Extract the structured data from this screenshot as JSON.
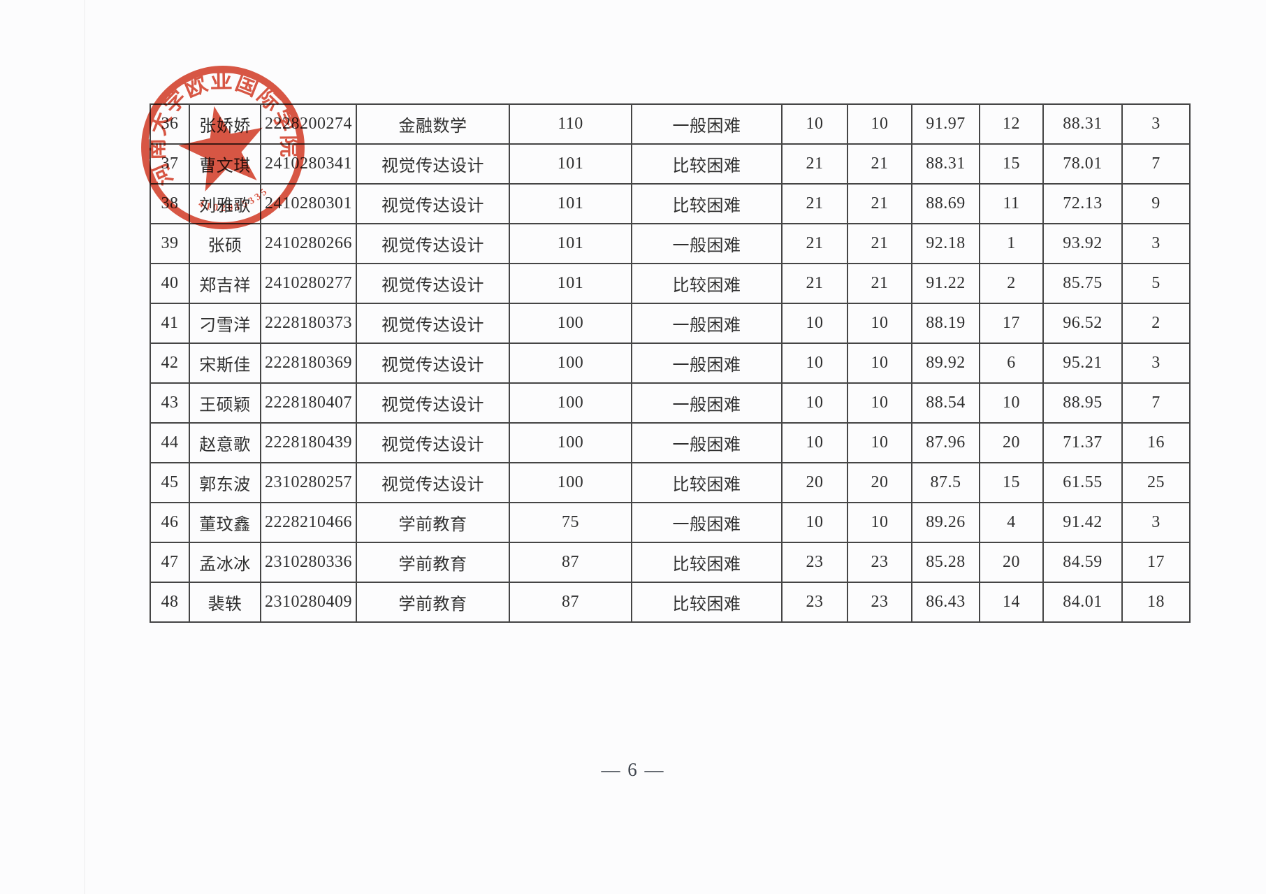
{
  "page": {
    "footer_page_number": "— 6 —",
    "background_color": "#fcfcfd",
    "ink_color": "#2f2f2f",
    "table_line_color": "#454545"
  },
  "stamp": {
    "arc_text": "河南大学欧亚国际学院",
    "serial_text": "4102015335",
    "color": "#d5402a",
    "star_icon": "red-star"
  },
  "table": {
    "rows": [
      {
        "no": "36",
        "name": "张娇娇",
        "student_id": "2228200274",
        "major": "金融数学",
        "plan": "110",
        "difficulty": "一般困难",
        "quota_a": "10",
        "quota_b": "10",
        "score_a": "91.97",
        "rank_a": "12",
        "score_b": "88.31",
        "rank_b": "3"
      },
      {
        "no": "37",
        "name": "曹文琪",
        "student_id": "2410280341",
        "major": "视觉传达设计",
        "plan": "101",
        "difficulty": "比较困难",
        "quota_a": "21",
        "quota_b": "21",
        "score_a": "88.31",
        "rank_a": "15",
        "score_b": "78.01",
        "rank_b": "7"
      },
      {
        "no": "38",
        "name": "刘雅歌",
        "student_id": "2410280301",
        "major": "视觉传达设计",
        "plan": "101",
        "difficulty": "比较困难",
        "quota_a": "21",
        "quota_b": "21",
        "score_a": "88.69",
        "rank_a": "11",
        "score_b": "72.13",
        "rank_b": "9"
      },
      {
        "no": "39",
        "name": "张硕",
        "student_id": "2410280266",
        "major": "视觉传达设计",
        "plan": "101",
        "difficulty": "一般困难",
        "quota_a": "21",
        "quota_b": "21",
        "score_a": "92.18",
        "rank_a": "1",
        "score_b": "93.92",
        "rank_b": "3"
      },
      {
        "no": "40",
        "name": "郑吉祥",
        "student_id": "2410280277",
        "major": "视觉传达设计",
        "plan": "101",
        "difficulty": "比较困难",
        "quota_a": "21",
        "quota_b": "21",
        "score_a": "91.22",
        "rank_a": "2",
        "score_b": "85.75",
        "rank_b": "5"
      },
      {
        "no": "41",
        "name": "刁雪洋",
        "student_id": "2228180373",
        "major": "视觉传达设计",
        "plan": "100",
        "difficulty": "一般困难",
        "quota_a": "10",
        "quota_b": "10",
        "score_a": "88.19",
        "rank_a": "17",
        "score_b": "96.52",
        "rank_b": "2"
      },
      {
        "no": "42",
        "name": "宋斯佳",
        "student_id": "2228180369",
        "major": "视觉传达设计",
        "plan": "100",
        "difficulty": "一般困难",
        "quota_a": "10",
        "quota_b": "10",
        "score_a": "89.92",
        "rank_a": "6",
        "score_b": "95.21",
        "rank_b": "3"
      },
      {
        "no": "43",
        "name": "王硕颖",
        "student_id": "2228180407",
        "major": "视觉传达设计",
        "plan": "100",
        "difficulty": "一般困难",
        "quota_a": "10",
        "quota_b": "10",
        "score_a": "88.54",
        "rank_a": "10",
        "score_b": "88.95",
        "rank_b": "7"
      },
      {
        "no": "44",
        "name": "赵意歌",
        "student_id": "2228180439",
        "major": "视觉传达设计",
        "plan": "100",
        "difficulty": "一般困难",
        "quota_a": "10",
        "quota_b": "10",
        "score_a": "87.96",
        "rank_a": "20",
        "score_b": "71.37",
        "rank_b": "16"
      },
      {
        "no": "45",
        "name": "郭东波",
        "student_id": "2310280257",
        "major": "视觉传达设计",
        "plan": "100",
        "difficulty": "比较困难",
        "quota_a": "20",
        "quota_b": "20",
        "score_a": "87.5",
        "rank_a": "15",
        "score_b": "61.55",
        "rank_b": "25"
      },
      {
        "no": "46",
        "name": "董玟鑫",
        "student_id": "2228210466",
        "major": "学前教育",
        "plan": "75",
        "difficulty": "一般困难",
        "quota_a": "10",
        "quota_b": "10",
        "score_a": "89.26",
        "rank_a": "4",
        "score_b": "91.42",
        "rank_b": "3"
      },
      {
        "no": "47",
        "name": "孟冰冰",
        "student_id": "2310280336",
        "major": "学前教育",
        "plan": "87",
        "difficulty": "比较困难",
        "quota_a": "23",
        "quota_b": "23",
        "score_a": "85.28",
        "rank_a": "20",
        "score_b": "84.59",
        "rank_b": "17"
      },
      {
        "no": "48",
        "name": "裴轶",
        "student_id": "2310280409",
        "major": "学前教育",
        "plan": "87",
        "difficulty": "比较困难",
        "quota_a": "23",
        "quota_b": "23",
        "score_a": "86.43",
        "rank_a": "14",
        "score_b": "84.01",
        "rank_b": "18"
      }
    ]
  }
}
